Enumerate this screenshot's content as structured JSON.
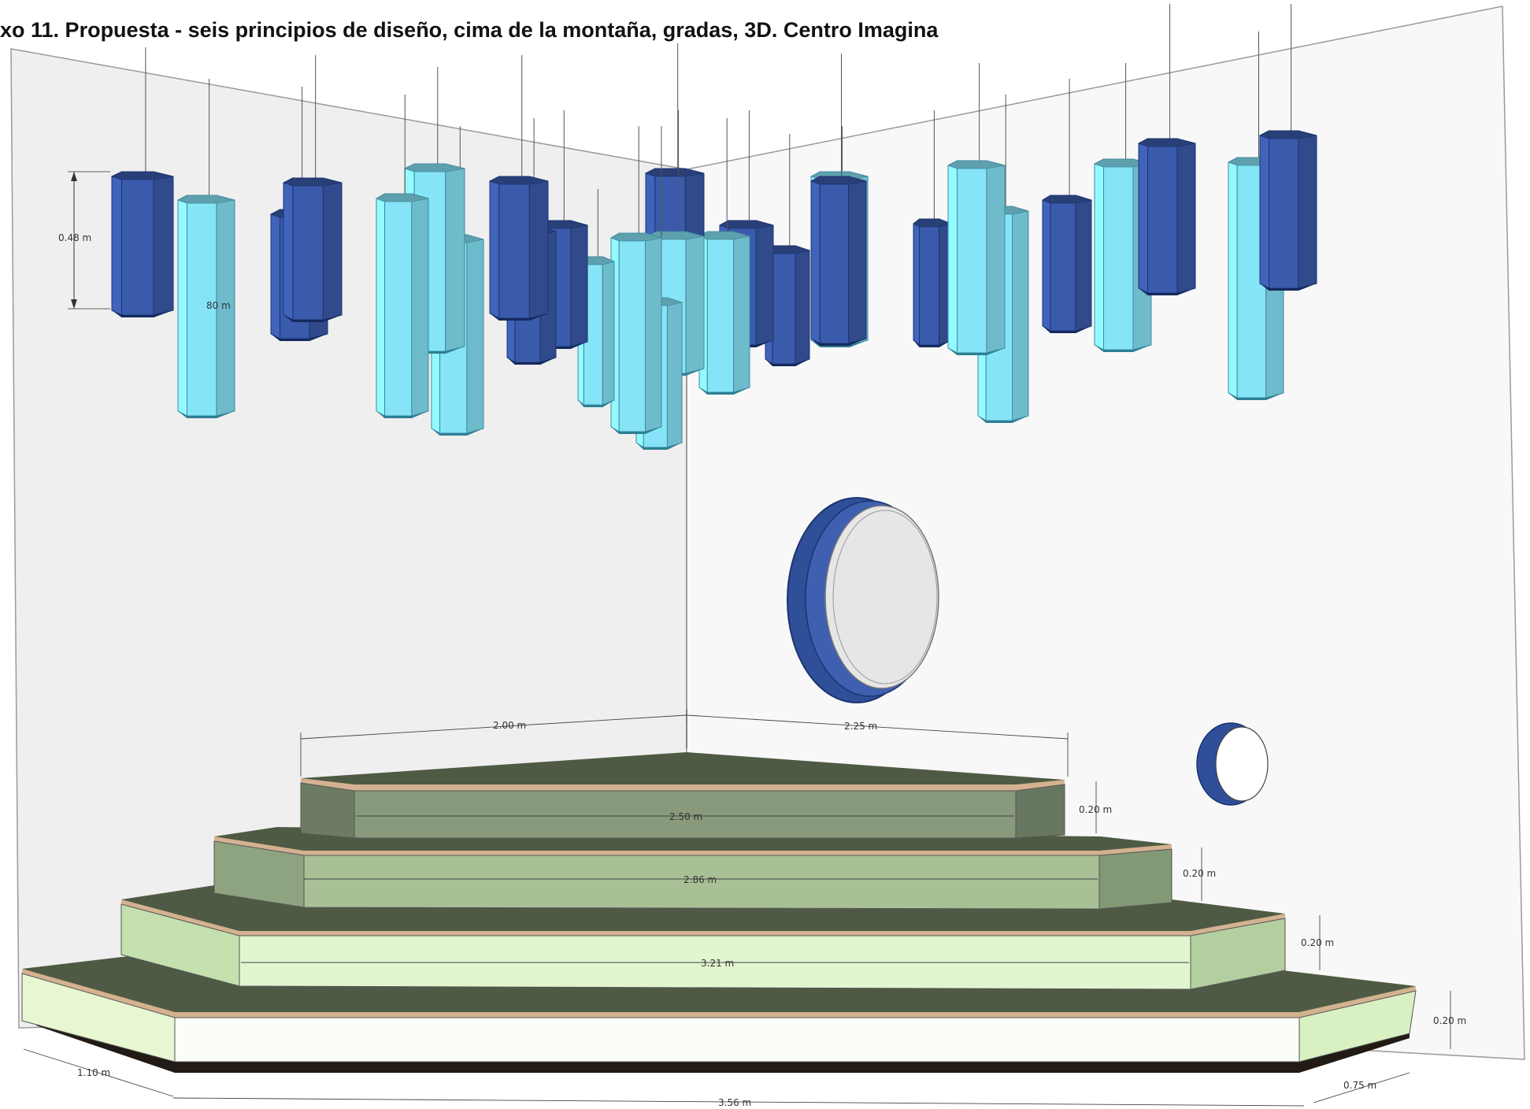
{
  "figure": {
    "caption": "xo 11. Propuesta - seis principios de diseño, cima de la montaña, gradas, 3D. Centro Imagina"
  },
  "colors": {
    "dark_prism": "#3a5aab",
    "light_prism": "#86e4f7",
    "wall_left": "#efefef",
    "wall_right": "#f7f7f7",
    "tread": "#4f5a44",
    "riser_1": "#73826a",
    "riser_2": "#9ab08b",
    "riser_3": "#c4e0ae",
    "riser_4": "#f4fbec",
    "edge_trim": "#d4b290",
    "base_shadow": "#221a14"
  },
  "dimensions": {
    "prism_height": "0.48 m",
    "prism_label_partial": "80 m",
    "top_left_edge": "2.00 m",
    "top_right_edge": "2.25 m",
    "step1_width": "2.50 m",
    "step2_width": "2.86 m",
    "step3_width": "3.21 m",
    "step_height_1": "0.20 m",
    "step_height_2": "0.20 m",
    "step_height_3": "0.20 m",
    "step_height_4": "0.20 m",
    "base_left": "1.10 m",
    "base_width": "3.56 m",
    "base_right": "0.75 m"
  }
}
